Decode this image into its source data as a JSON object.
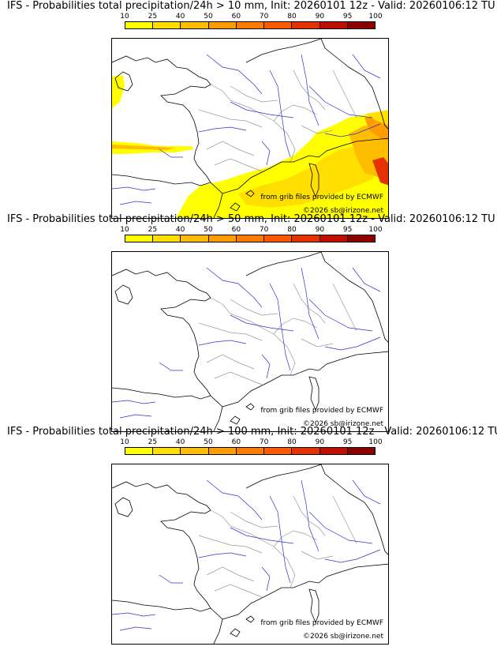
{
  "colorbar": {
    "ticks": [
      "10",
      "25",
      "40",
      "50",
      "60",
      "70",
      "80",
      "90",
      "95",
      "100"
    ],
    "colors": [
      "#ffff00",
      "#ffde00",
      "#ffbd00",
      "#ff9c00",
      "#ff7b00",
      "#ff5a00",
      "#e63200",
      "#c00f00",
      "#8c0000",
      "#5a0000"
    ]
  },
  "credits": {
    "source": "from grib files provided by ECMWF",
    "copyright": "©2026 sb@irizone.net"
  },
  "panels": [
    {
      "title": "IFS - Probabilities total precipitation/24h > 10 mm, Init: 20260101 12z - Valid: 20260106:12 TU",
      "has_precip": true
    },
    {
      "title": "IFS - Probabilities total precipitation/24h > 50 mm, Init: 20260101 12z - Valid: 20260106:12 TU",
      "has_precip": false
    },
    {
      "title": "IFS - Probabilities total precipitation/24h > 100 mm, Init: 20260101 12z - Valid: 20260106:12 TU",
      "has_precip": false
    }
  ]
}
